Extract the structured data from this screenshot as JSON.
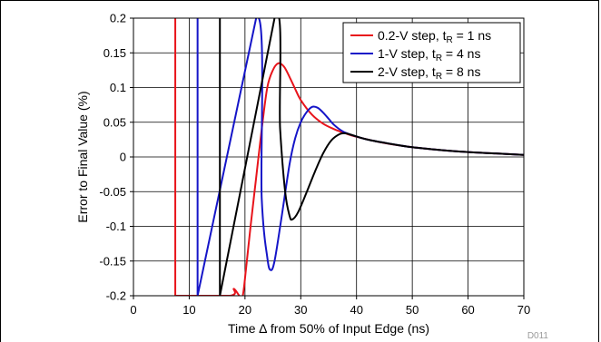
{
  "chart_data": {
    "type": "line",
    "title": "",
    "xlabel": "Time ∆ from 50% of Input Edge (ns)",
    "ylabel": "Error to Final Value (%)",
    "xlim": [
      0,
      70
    ],
    "ylim": [
      -0.2,
      0.2
    ],
    "x_ticks": [
      "0",
      "10",
      "20",
      "30",
      "40",
      "50",
      "60",
      "70"
    ],
    "y_ticks": [
      "-0.2",
      "-0.15",
      "-0.1",
      "-0.05",
      "0",
      "0.05",
      "0.1",
      "0.15",
      "0.2"
    ],
    "grid": true,
    "legend_position": "top-right",
    "figure_code": "D011",
    "series": [
      {
        "name": "0.2-V step, tR = 1 ns",
        "legend_main": "0.2-V step, t",
        "legend_sub": "R",
        "legend_tail": " = 1 ns",
        "color": "#e8141b",
        "points": [
          [
            7.5,
            0.2
          ],
          [
            7.5,
            -0.2
          ],
          [
            17.3,
            -0.2
          ],
          [
            18,
            -0.19
          ],
          [
            19,
            -0.2
          ],
          [
            19.6,
            -0.2
          ],
          [
            20.2,
            -0.16
          ],
          [
            21,
            -0.1
          ],
          [
            22,
            -0.03
          ],
          [
            23,
            0.04
          ],
          [
            24,
            0.1
          ],
          [
            25,
            0.125
          ],
          [
            26,
            0.135
          ],
          [
            27,
            0.13
          ],
          [
            28,
            0.115
          ],
          [
            29,
            0.098
          ],
          [
            30,
            0.082
          ],
          [
            32,
            0.061
          ],
          [
            34,
            0.048
          ],
          [
            36,
            0.04
          ],
          [
            38,
            0.034
          ],
          [
            40,
            0.029
          ],
          [
            45,
            0.02
          ],
          [
            50,
            0.014
          ],
          [
            55,
            0.01
          ],
          [
            60,
            0.007
          ],
          [
            65,
            0.005
          ],
          [
            70,
            0.003
          ]
        ]
      },
      {
        "name": "1-V step, tR = 4 ns",
        "legend_main": "1-V step, t",
        "legend_sub": "R",
        "legend_tail": " = 4 ns",
        "color": "#1515c8",
        "points": [
          [
            11.5,
            0.2
          ],
          [
            11.5,
            -0.2
          ],
          [
            22,
            0.2
          ],
          [
            23,
            -0.06
          ],
          [
            24,
            -0.145
          ],
          [
            24.6,
            -0.163
          ],
          [
            25.3,
            -0.15
          ],
          [
            26.5,
            -0.09
          ],
          [
            28,
            -0.01
          ],
          [
            29,
            0.027
          ],
          [
            30,
            0.05
          ],
          [
            31,
            0.064
          ],
          [
            32,
            0.072
          ],
          [
            33,
            0.071
          ],
          [
            34,
            0.064
          ],
          [
            35,
            0.055
          ],
          [
            36,
            0.046
          ],
          [
            37.5,
            0.037
          ],
          [
            39,
            0.032
          ],
          [
            42,
            0.025
          ],
          [
            46,
            0.019
          ],
          [
            50,
            0.014
          ],
          [
            55,
            0.01
          ],
          [
            60,
            0.007
          ],
          [
            65,
            0.005
          ],
          [
            70,
            0.003
          ]
        ]
      },
      {
        "name": "2-V step, tR = 8 ns",
        "legend_main": "2-V step, t",
        "legend_sub": "R",
        "legend_tail": " = 8 ns",
        "color": "#000000",
        "points": [
          [
            15.5,
            0.2
          ],
          [
            15.5,
            -0.2
          ],
          [
            25.3,
            0.2
          ],
          [
            26.3,
            0.04
          ],
          [
            27.2,
            -0.05
          ],
          [
            28,
            -0.085
          ],
          [
            28.5,
            -0.09
          ],
          [
            29.5,
            -0.08
          ],
          [
            31,
            -0.052
          ],
          [
            32.5,
            -0.022
          ],
          [
            34,
            0.005
          ],
          [
            35.5,
            0.024
          ],
          [
            37,
            0.033
          ],
          [
            38,
            0.034
          ],
          [
            39,
            0.032
          ],
          [
            42,
            0.025
          ],
          [
            46,
            0.019
          ],
          [
            50,
            0.014
          ],
          [
            55,
            0.01
          ],
          [
            60,
            0.007
          ],
          [
            65,
            0.005
          ],
          [
            70,
            0.003
          ]
        ]
      }
    ]
  }
}
